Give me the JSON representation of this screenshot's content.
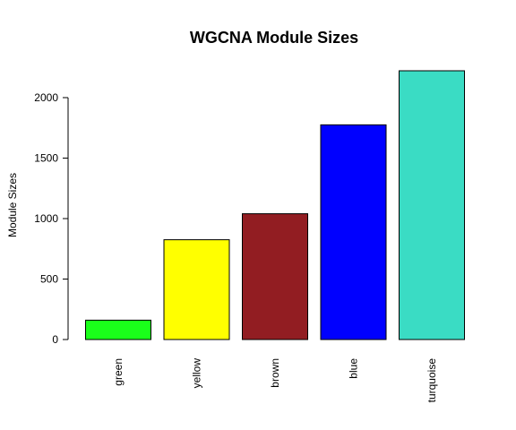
{
  "chart_data": {
    "type": "bar",
    "title": "WGCNA Module Sizes",
    "xlabel": "",
    "ylabel": "Module Sizes",
    "categories": [
      "green",
      "yellow",
      "brown",
      "blue",
      "turquoise"
    ],
    "values": [
      160,
      825,
      1040,
      1775,
      2222
    ],
    "colors": [
      "#1aff1a",
      "#ffff00",
      "#921d22",
      "#0000ff",
      "#3adcc4"
    ],
    "yticks": [
      0,
      500,
      1000,
      1500,
      2000
    ],
    "ylim": [
      0,
      2222
    ],
    "grid": false,
    "legend": "none"
  }
}
